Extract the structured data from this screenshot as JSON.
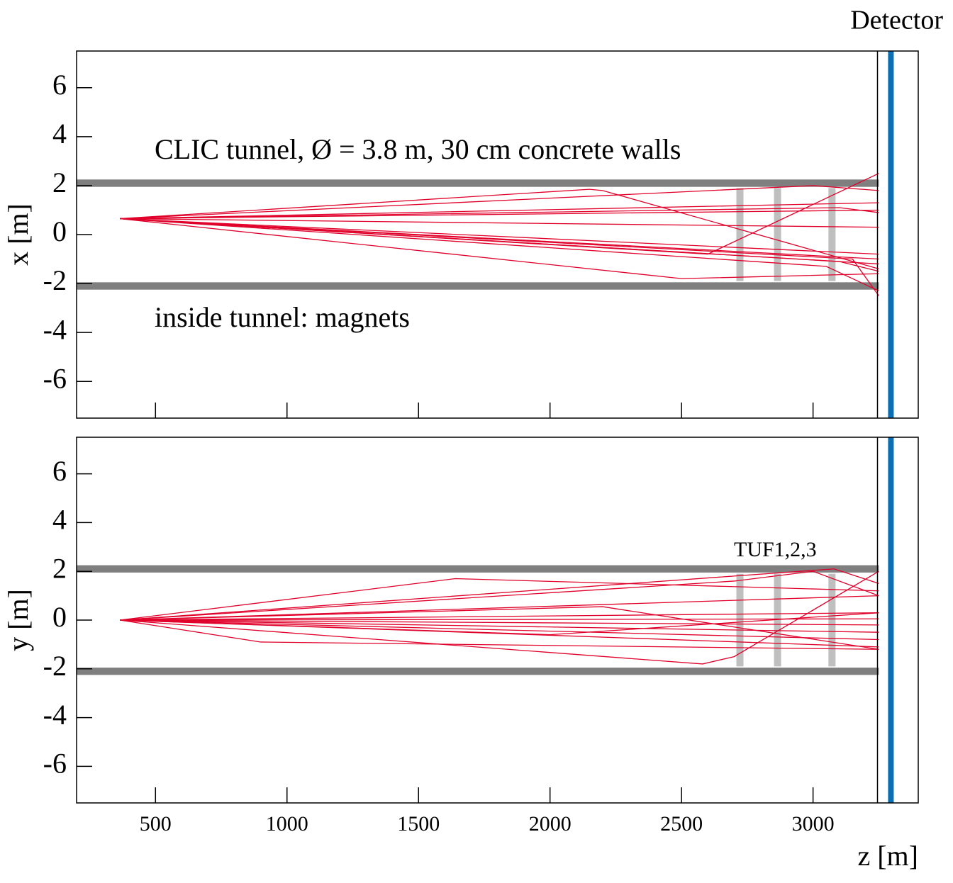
{
  "chart_data": [
    {
      "type": "line",
      "ylabel": "x [m]",
      "detector_label": "Detector",
      "annotations": [
        "CLIC tunnel,  Ø = 3.8 m, 30 cm concrete walls",
        "inside tunnel: magnets"
      ],
      "xlim": [
        200,
        3400
      ],
      "xticks": [
        500,
        1000,
        1500,
        2000,
        2500,
        3000
      ],
      "xtick_labels": false,
      "ylim": [
        -7.5,
        7.5
      ],
      "yticks": [
        -6,
        -4,
        -2,
        0,
        2,
        4,
        6
      ],
      "color": "#e0002a",
      "walls": {
        "y": [
          2.1,
          -2.1
        ],
        "thickness": 0.3,
        "z_end": 3250,
        "color": "#7f7f7f"
      },
      "tuf": {
        "z": [
          2722,
          2865,
          3072
        ],
        "width": 27,
        "half_height": 1.9,
        "color": "#bfbfbf"
      },
      "tunnel_end": 3245,
      "detector": 3296,
      "detector_color": "#0a6fb4",
      "series": [
        {
          "x": [
            365,
            2150,
            2200,
            3250
          ],
          "values": [
            0.65,
            1.85,
            1.8,
            -1.4
          ]
        },
        {
          "x": [
            365,
            2600,
            3250
          ],
          "values": [
            0.65,
            -0.8,
            2.5
          ]
        },
        {
          "x": [
            365,
            3000,
            3250
          ],
          "values": [
            0.65,
            2.0,
            1.8
          ]
        },
        {
          "x": [
            365,
            3250
          ],
          "values": [
            0.65,
            1.3
          ]
        },
        {
          "x": [
            365,
            3250
          ],
          "values": [
            0.65,
            1.0
          ]
        },
        {
          "x": [
            365,
            3100,
            3250
          ],
          "values": [
            0.65,
            1.1,
            0.9
          ]
        },
        {
          "x": [
            365,
            3250
          ],
          "values": [
            0.65,
            -0.8
          ]
        },
        {
          "x": [
            365,
            3250
          ],
          "values": [
            0.65,
            -1.0
          ]
        },
        {
          "x": [
            365,
            3250
          ],
          "values": [
            0.65,
            -1.2
          ]
        },
        {
          "x": [
            365,
            3100,
            3250
          ],
          "values": [
            0.65,
            -1.1,
            -1.5
          ]
        },
        {
          "x": [
            365,
            2500,
            3250
          ],
          "values": [
            0.65,
            -1.8,
            -1.6
          ]
        },
        {
          "x": [
            365,
            3050,
            3250
          ],
          "values": [
            0.65,
            -1.3,
            -2.3
          ]
        },
        {
          "x": [
            365,
            3150,
            3250
          ],
          "values": [
            0.65,
            -1.0,
            -2.5
          ]
        },
        {
          "x": [
            365,
            3250
          ],
          "values": [
            0.65,
            0.3
          ]
        }
      ]
    },
    {
      "type": "line",
      "ylabel": "y [m]",
      "xlabel": "z [m]",
      "annotations": [
        "TUF1,2,3"
      ],
      "xlim": [
        200,
        3400
      ],
      "xticks": [
        500,
        1000,
        1500,
        2000,
        2500,
        3000
      ],
      "xtick_labels": true,
      "ylim": [
        -7.5,
        7.5
      ],
      "yticks": [
        -6,
        -4,
        -2,
        0,
        2,
        4,
        6
      ],
      "color": "#e0002a",
      "walls": {
        "y": [
          2.1,
          -2.1
        ],
        "thickness": 0.3,
        "z_end": 3250,
        "color": "#7f7f7f"
      },
      "tuf": {
        "z": [
          2722,
          2865,
          3072
        ],
        "width": 27,
        "half_height": 1.9,
        "color": "#bfbfbf"
      },
      "tunnel_end": 3245,
      "detector": 3296,
      "detector_color": "#0a6fb4",
      "series": [
        {
          "x": [
            365,
            1640,
            3250
          ],
          "values": [
            0,
            1.7,
            1.2
          ]
        },
        {
          "x": [
            365,
            2700,
            3000,
            3250
          ],
          "values": [
            0,
            1.6,
            2.0,
            1.0
          ]
        },
        {
          "x": [
            365,
            3080,
            3250
          ],
          "values": [
            0,
            2.1,
            1.5
          ]
        },
        {
          "x": [
            365,
            3250
          ],
          "values": [
            0,
            1.0
          ]
        },
        {
          "x": [
            365,
            2200,
            3250
          ],
          "values": [
            0,
            0.55,
            -1.2
          ]
        },
        {
          "x": [
            365,
            3250
          ],
          "values": [
            0,
            0.3
          ]
        },
        {
          "x": [
            365,
            3250
          ],
          "values": [
            0,
            0.05
          ]
        },
        {
          "x": [
            365,
            3250
          ],
          "values": [
            0,
            -0.2
          ]
        },
        {
          "x": [
            365,
            3250
          ],
          "values": [
            0,
            -0.5
          ]
        },
        {
          "x": [
            365,
            3250
          ],
          "values": [
            0,
            -0.8
          ]
        },
        {
          "x": [
            365,
            900,
            3250
          ],
          "values": [
            0,
            -0.9,
            -1.2
          ]
        },
        {
          "x": [
            365,
            2580,
            2700,
            3250
          ],
          "values": [
            0,
            -1.8,
            -1.5,
            2.0
          ]
        },
        {
          "x": [
            365,
            3250
          ],
          "values": [
            0,
            -1.1
          ]
        },
        {
          "x": [
            365,
            2000,
            3250
          ],
          "values": [
            0,
            -0.6,
            0.3
          ]
        }
      ]
    }
  ]
}
